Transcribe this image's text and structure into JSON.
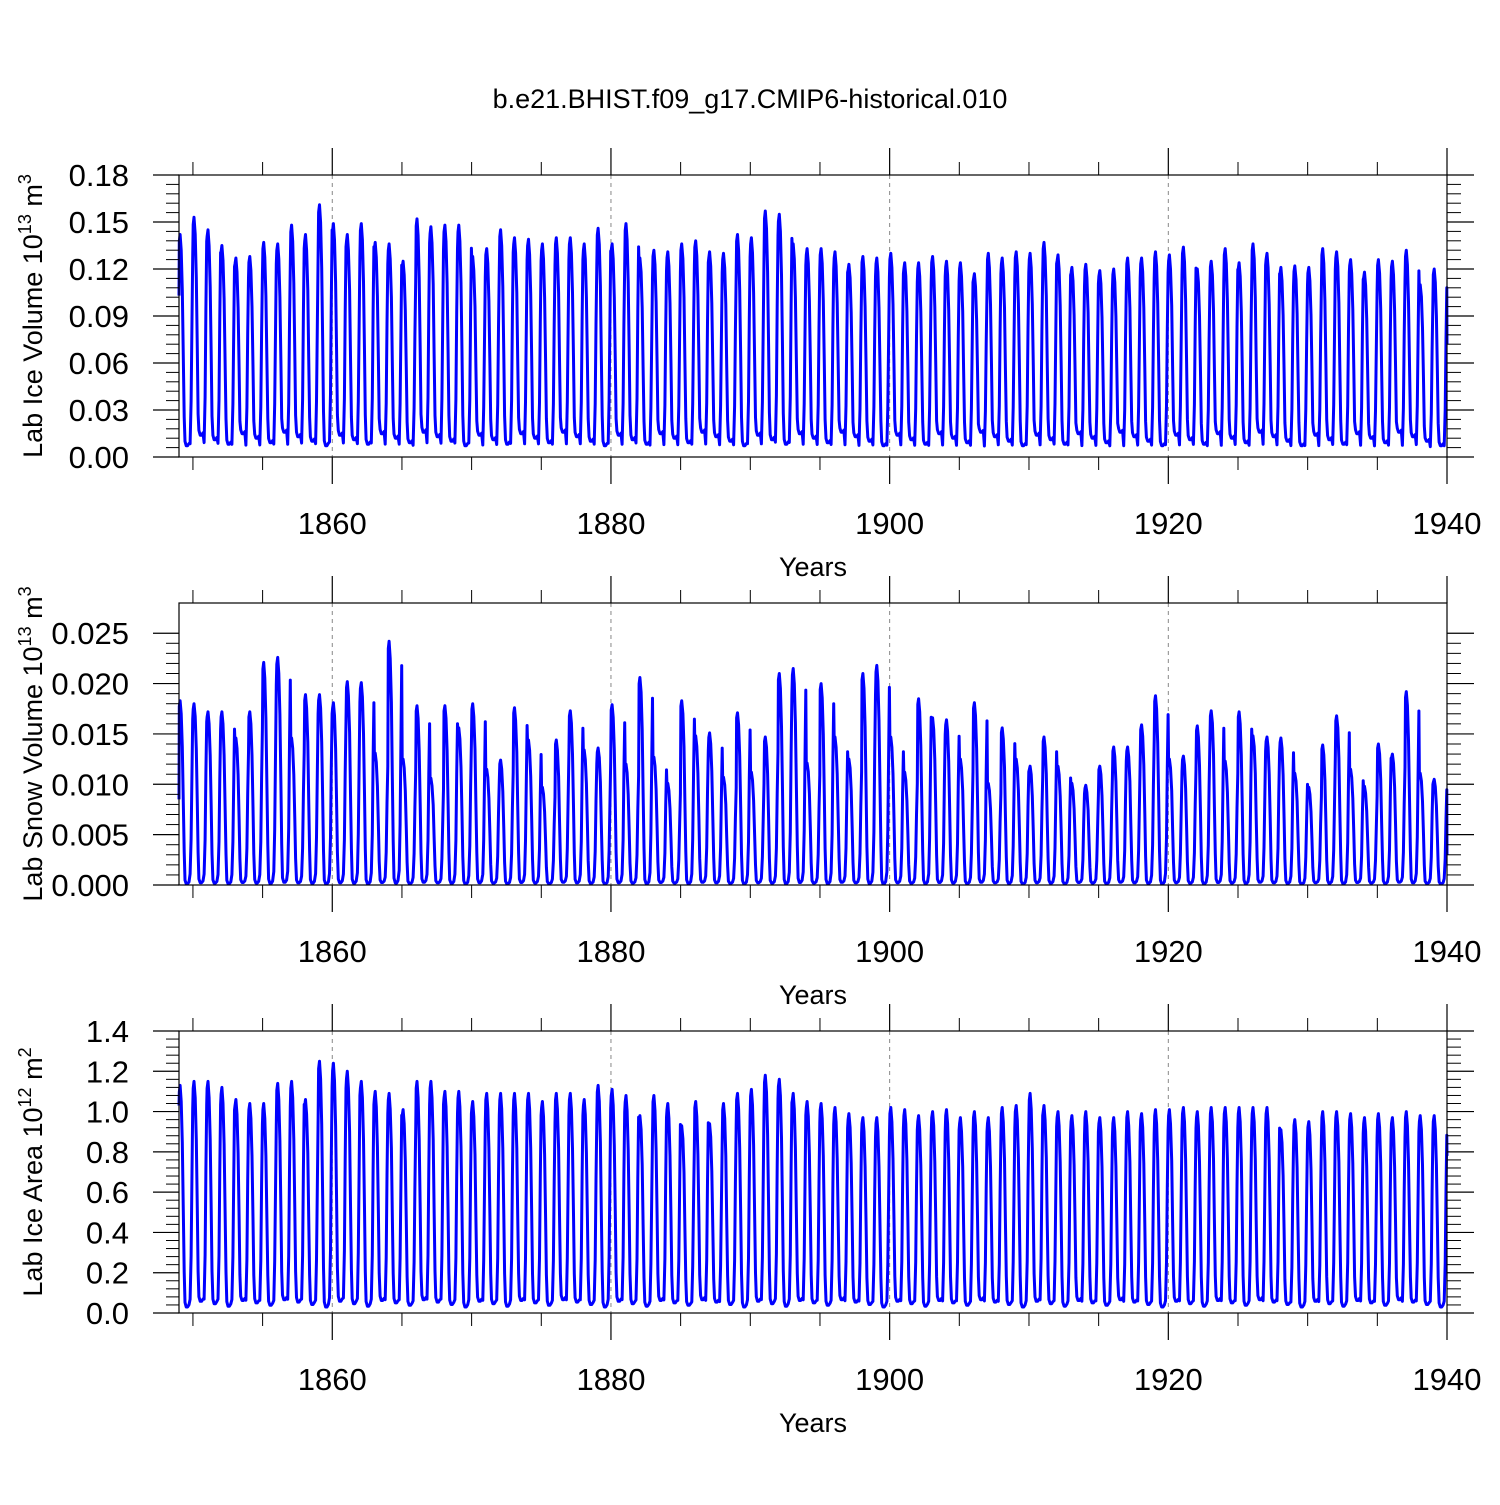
{
  "title": "b.e21.BHIST.f09_g17.CMIP6-historical.010",
  "colors": {
    "series": "#0000ff",
    "axes": "#000000",
    "grid": "#888888"
  },
  "chart_data": [
    {
      "type": "line",
      "ylabel_main": "Lab Ice Volume 10",
      "ylabel_exp": "13",
      "ylabel_unit": " m",
      "ylabel_unit_exp": "3",
      "xlabel": "Years",
      "xlim": [
        1849,
        1940
      ],
      "ylim": [
        0,
        0.18
      ],
      "xticks": [
        1860,
        1880,
        1900,
        1920,
        1940
      ],
      "xtick_labels": [
        "1860",
        "1880",
        "1900",
        "1920",
        "1940"
      ],
      "yticks": [
        0,
        0.03,
        0.06,
        0.09,
        0.12,
        0.15,
        0.18
      ],
      "ytick_labels": [
        "0.00",
        "0.03",
        "0.06",
        "0.09",
        "0.12",
        "0.15",
        "0.18"
      ],
      "grid": "vertical dashed at major x ticks",
      "series": [
        {
          "name": "Lab Ice Volume",
          "start_value": 0.103,
          "end_value": 0.072,
          "trough_value": 0.012,
          "annual_maxima": [
            0.142,
            0.153,
            0.145,
            0.135,
            0.127,
            0.128,
            0.137,
            0.136,
            0.148,
            0.142,
            0.161,
            0.149,
            0.142,
            0.149,
            0.137,
            0.136,
            0.125,
            0.152,
            0.147,
            0.148,
            0.148,
            0.128,
            0.133,
            0.145,
            0.14,
            0.139,
            0.136,
            0.14,
            0.14,
            0.136,
            0.146,
            0.136,
            0.149,
            0.127,
            0.132,
            0.131,
            0.136,
            0.138,
            0.131,
            0.13,
            0.142,
            0.14,
            0.157,
            0.155,
            0.136,
            0.133,
            0.133,
            0.131,
            0.123,
            0.128,
            0.127,
            0.13,
            0.124,
            0.124,
            0.128,
            0.125,
            0.124,
            0.117,
            0.13,
            0.127,
            0.131,
            0.13,
            0.137,
            0.129,
            0.121,
            0.123,
            0.119,
            0.12,
            0.127,
            0.127,
            0.131,
            0.129,
            0.134,
            0.12,
            0.125,
            0.133,
            0.124,
            0.136,
            0.13,
            0.121,
            0.122,
            0.121,
            0.133,
            0.131,
            0.126,
            0.118,
            0.126,
            0.125,
            0.132,
            0.11,
            0.12
          ]
        }
      ]
    },
    {
      "type": "line",
      "ylabel_main": "Lab Snow Volume 10",
      "ylabel_exp": "13",
      "ylabel_unit": " m",
      "ylabel_unit_exp": "3",
      "xlabel": "Years",
      "xlim": [
        1849,
        1940
      ],
      "ylim": [
        0,
        0.028
      ],
      "xticks": [
        1860,
        1880,
        1900,
        1920,
        1940
      ],
      "xtick_labels": [
        "1860",
        "1880",
        "1900",
        "1920",
        "1940"
      ],
      "yticks": [
        0,
        0.005,
        0.01,
        0.015,
        0.02,
        0.025
      ],
      "ytick_labels": [
        "0.000",
        "0.005",
        "0.010",
        "0.015",
        "0.020",
        "0.025"
      ],
      "grid": "vertical dashed at major x ticks",
      "series": [
        {
          "name": "Lab Snow Volume",
          "start_value": 0.0085,
          "end_value": 0.003,
          "trough_value": 0.0002,
          "annual_maxima": [
            0.0183,
            0.018,
            0.0172,
            0.0172,
            0.0146,
            0.0172,
            0.0221,
            0.0226,
            0.0146,
            0.0189,
            0.0189,
            0.0181,
            0.0202,
            0.0201,
            0.0131,
            0.0242,
            0.0125,
            0.0178,
            0.0106,
            0.0178,
            0.0156,
            0.018,
            0.0115,
            0.0124,
            0.0176,
            0.0144,
            0.0097,
            0.0144,
            0.0173,
            0.0134,
            0.0136,
            0.0179,
            0.012,
            0.0206,
            0.0127,
            0.0101,
            0.0183,
            0.0148,
            0.0151,
            0.0107,
            0.0171,
            0.0112,
            0.0147,
            0.021,
            0.0215,
            0.0121,
            0.02,
            0.0147,
            0.0125,
            0.021,
            0.0218,
            0.0147,
            0.0112,
            0.0185,
            0.0166,
            0.0164,
            0.0125,
            0.0181,
            0.0101,
            0.0156,
            0.0125,
            0.0118,
            0.0147,
            0.0118,
            0.0101,
            0.0099,
            0.0118,
            0.0137,
            0.0137,
            0.0159,
            0.0188,
            0.0125,
            0.0128,
            0.0158,
            0.0173,
            0.0123,
            0.0172,
            0.0148,
            0.0147,
            0.0146,
            0.0111,
            0.0097,
            0.0139,
            0.0168,
            0.0115,
            0.0098,
            0.014,
            0.013,
            0.0192,
            0.0111,
            0.0105
          ]
        }
      ]
    },
    {
      "type": "line",
      "ylabel_main": "Lab Ice Area 10",
      "ylabel_exp": "12",
      "ylabel_unit": " m",
      "ylabel_unit_exp": "2",
      "xlabel": "Years",
      "xlim": [
        1849,
        1940
      ],
      "ylim": [
        0,
        1.4
      ],
      "xticks": [
        1860,
        1880,
        1900,
        1920,
        1940
      ],
      "xtick_labels": [
        "1860",
        "1880",
        "1900",
        "1920",
        "1940"
      ],
      "yticks": [
        0,
        0.2,
        0.4,
        0.6,
        0.8,
        1.0,
        1.2,
        1.4
      ],
      "ytick_labels": [
        "0.0",
        "0.2",
        "0.4",
        "0.6",
        "0.8",
        "1.0",
        "1.2",
        "1.4"
      ],
      "grid": "vertical dashed at major x ticks",
      "series": [
        {
          "name": "Lab Ice Area",
          "start_value": 1.03,
          "end_value": 0.78,
          "trough_value": 0.05,
          "annual_maxima": [
            1.13,
            1.15,
            1.15,
            1.12,
            1.06,
            1.04,
            1.04,
            1.14,
            1.15,
            1.06,
            1.25,
            1.24,
            1.2,
            1.15,
            1.1,
            1.09,
            1.01,
            1.15,
            1.15,
            1.1,
            1.1,
            1.05,
            1.09,
            1.09,
            1.09,
            1.09,
            1.05,
            1.09,
            1.09,
            1.06,
            1.13,
            1.11,
            1.08,
            0.98,
            1.08,
            1.04,
            0.93,
            1.05,
            0.94,
            1.04,
            1.09,
            1.11,
            1.18,
            1.16,
            1.09,
            1.05,
            1.04,
            1.02,
            0.99,
            0.97,
            0.97,
            1.02,
            1.01,
            0.98,
            1.0,
            1.01,
            0.97,
            1.0,
            0.97,
            1.02,
            1.03,
            1.09,
            1.03,
            1.0,
            0.98,
            1.0,
            0.97,
            0.97,
            1.0,
            0.99,
            1.01,
            1.01,
            1.02,
            1.0,
            1.02,
            1.02,
            1.02,
            1.02,
            1.02,
            0.91,
            0.96,
            0.95,
            1.0,
            1.0,
            0.99,
            0.97,
            0.99,
            0.97,
            1.0,
            0.98,
            0.98
          ]
        }
      ]
    }
  ]
}
